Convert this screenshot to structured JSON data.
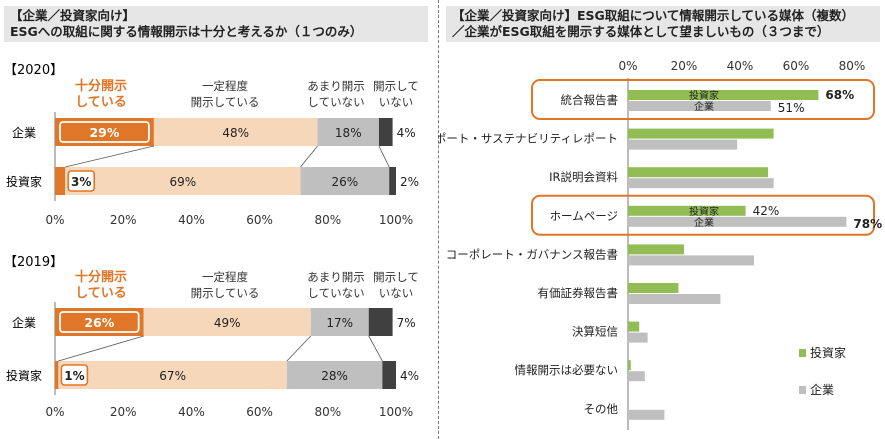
{
  "colors": {
    "orange": "#e07628",
    "light_orange": "#f7d7b9",
    "gray": "#bfbfbf",
    "dark_gray": "#404040",
    "green": "#92bd55",
    "bar_gray": "#bfbfbf"
  },
  "left": {
    "title_line1": "【企業／投資家向け】",
    "title_line2": "ESGへの取組に関する情報開示は十分と考えるか（１つのみ）",
    "header_sufficient": [
      "十分開示",
      "している"
    ],
    "header_some": [
      "一定程度",
      "開示している"
    ],
    "header_notmuch": [
      "あまり開示",
      "していない"
    ],
    "header_none": [
      "開示して",
      "いない"
    ]
  },
  "right": {
    "title_line1": "【企業／投資家向け】ESG取組について情報開示している媒体（複数）",
    "title_line2": "／企業がESG取組を開示する媒体として望ましいもの（３つまで）",
    "inbar_investor": "投資家",
    "inbar_company": "企業"
  },
  "chart_data": [
    {
      "type": "bar",
      "orientation": "horizontal",
      "stacked": true,
      "percent": true,
      "title": "【2020】",
      "categories": [
        "企業",
        "投資家"
      ],
      "series": [
        {
          "name": "十分開示している",
          "values": [
            29,
            3
          ]
        },
        {
          "name": "一定程度開示している",
          "values": [
            48,
            69
          ]
        },
        {
          "name": "あまり開示していない",
          "values": [
            18,
            26
          ]
        },
        {
          "name": "開示していない",
          "values": [
            4,
            2
          ]
        }
      ],
      "xlim": [
        0,
        100
      ],
      "xticks": [
        "0%",
        "20%",
        "40%",
        "60%",
        "80%",
        "100%"
      ]
    },
    {
      "type": "bar",
      "orientation": "horizontal",
      "stacked": true,
      "percent": true,
      "title": "【2019】",
      "categories": [
        "企業",
        "投資家"
      ],
      "series": [
        {
          "name": "十分開示している",
          "values": [
            26,
            1
          ]
        },
        {
          "name": "一定程度開示している",
          "values": [
            49,
            67
          ]
        },
        {
          "name": "あまり開示していない",
          "values": [
            17,
            28
          ]
        },
        {
          "name": "開示していない",
          "values": [
            7,
            4
          ]
        }
      ],
      "xlim": [
        0,
        100
      ],
      "xticks": [
        "0%",
        "20%",
        "40%",
        "60%",
        "80%",
        "100%"
      ]
    },
    {
      "type": "bar",
      "orientation": "horizontal",
      "stacked": false,
      "categories": [
        "統合報告書",
        "CSRレポート・サステナビリティレポート",
        "IR説明会資料",
        "ホームページ",
        "コーポレート・ガバナンス報告書",
        "有価証券報告書",
        "決算短信",
        "情報開示は必要ない",
        "その他"
      ],
      "series": [
        {
          "name": "投資家",
          "values": [
            68,
            52,
            50,
            42,
            20,
            18,
            4,
            1,
            0
          ]
        },
        {
          "name": "企業",
          "values": [
            51,
            39,
            52,
            78,
            45,
            33,
            7,
            6,
            13
          ]
        }
      ],
      "labels": {
        "統合報告書": [
          "68%",
          "51%"
        ],
        "ホームページ": [
          "42%",
          "78%"
        ]
      },
      "highlighted": [
        "統合報告書",
        "ホームページ"
      ],
      "xlim": [
        0,
        80
      ],
      "xticks": [
        "0%",
        "20%",
        "40%",
        "60%",
        "80%"
      ],
      "legend": [
        "投資家",
        "企業"
      ]
    }
  ]
}
